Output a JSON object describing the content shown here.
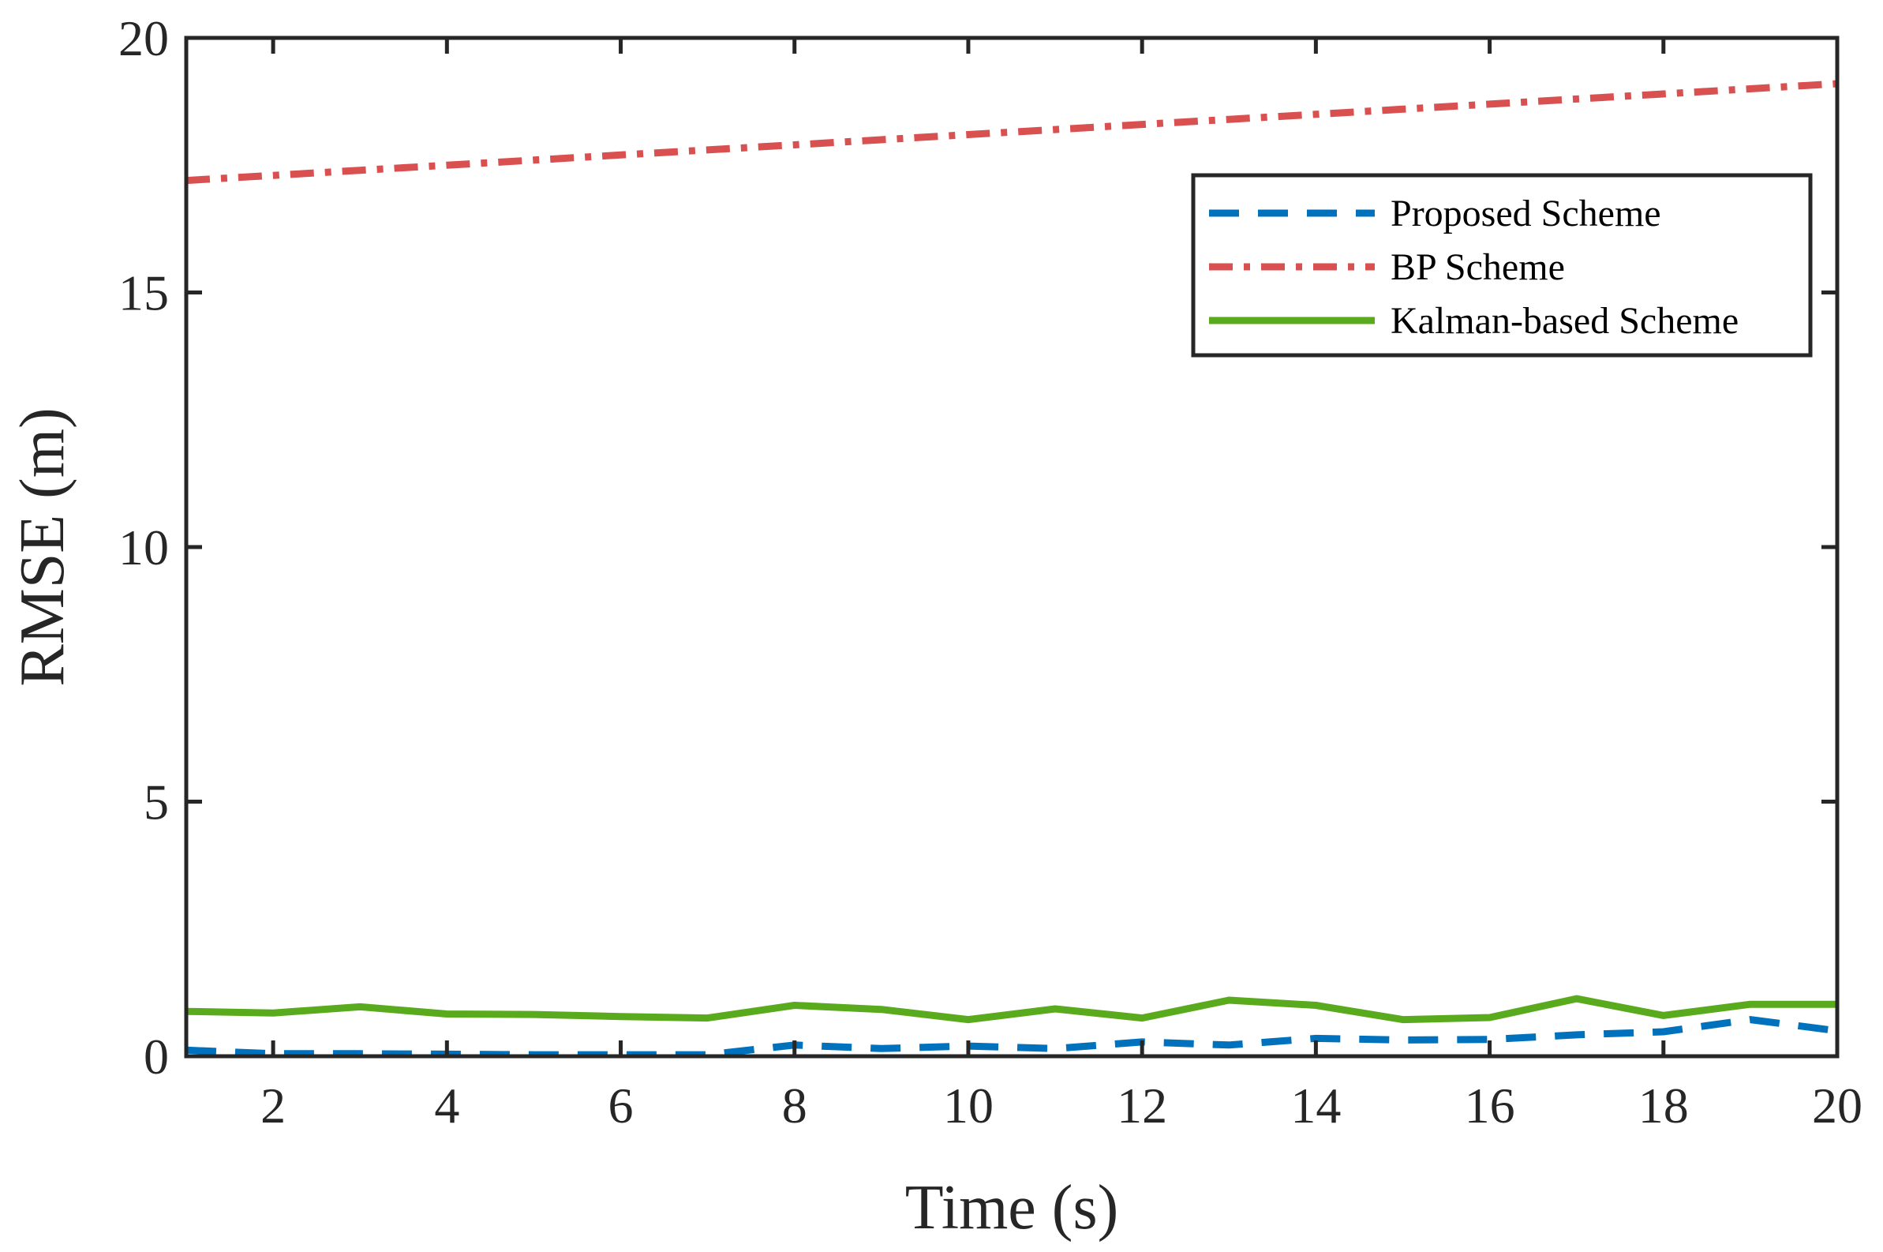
{
  "chart_data": {
    "type": "line",
    "title": "",
    "xlabel": "Time (s)",
    "ylabel": "RMSE (m)",
    "xlim": [
      1,
      20
    ],
    "ylim": [
      0,
      20
    ],
    "xticks": [
      2,
      4,
      6,
      8,
      10,
      12,
      14,
      16,
      18,
      20
    ],
    "yticks": [
      0,
      5,
      10,
      15,
      20
    ],
    "grid": false,
    "legend_position": "top-right",
    "x": [
      1,
      2,
      3,
      4,
      5,
      6,
      7,
      8,
      9,
      10,
      11,
      12,
      13,
      14,
      15,
      16,
      17,
      18,
      19,
      20
    ],
    "series": [
      {
        "name": "Proposed Scheme",
        "color": "#0072BD",
        "line_style": "dashed",
        "values": [
          0.12,
          0.05,
          0.05,
          0.04,
          0.03,
          0.03,
          0.03,
          0.22,
          0.15,
          0.2,
          0.15,
          0.28,
          0.22,
          0.35,
          0.32,
          0.33,
          0.42,
          0.48,
          0.72,
          0.5
        ]
      },
      {
        "name": "BP Scheme",
        "color": "#D95050",
        "line_style": "dash-dot",
        "values": [
          17.2,
          17.3,
          17.4,
          17.5,
          17.6,
          17.7,
          17.8,
          17.9,
          18.0,
          18.1,
          18.2,
          18.3,
          18.4,
          18.5,
          18.6,
          18.7,
          18.8,
          18.9,
          19.0,
          19.1
        ]
      },
      {
        "name": "Kalman-based Scheme",
        "color": "#5AAA1E",
        "line_style": "solid",
        "values": [
          0.88,
          0.85,
          0.97,
          0.83,
          0.82,
          0.78,
          0.75,
          1.0,
          0.92,
          0.72,
          0.93,
          0.75,
          1.1,
          1.0,
          0.72,
          0.76,
          1.13,
          0.8,
          1.02,
          1.02
        ]
      }
    ]
  }
}
